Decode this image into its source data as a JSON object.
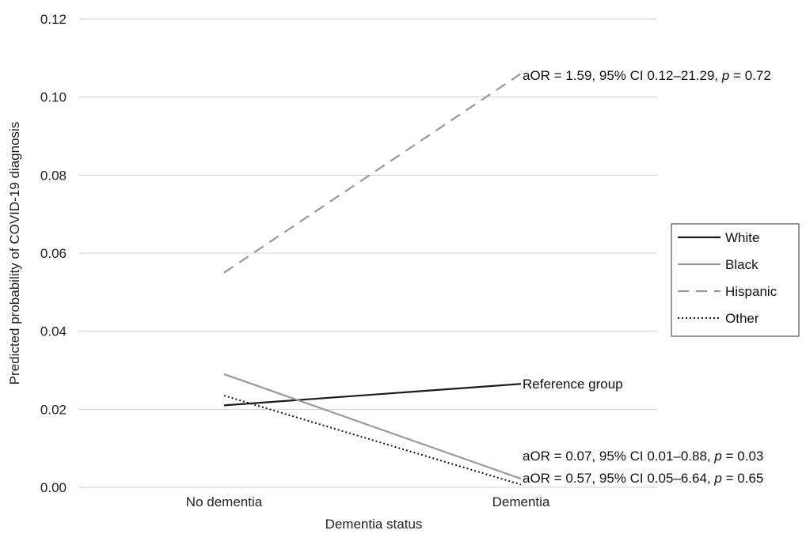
{
  "chart_data": {
    "type": "line",
    "title": "",
    "xlabel": "Dementia status",
    "ylabel": "Predicted probability of COVID-19 diagnosis",
    "categories": [
      "No dementia",
      "Dementia"
    ],
    "ylim": [
      0,
      0.12
    ],
    "yticks": [
      "0.00",
      "0.02",
      "0.04",
      "0.06",
      "0.08",
      "0.10",
      "0.12"
    ],
    "ytick_values": [
      0,
      0.02,
      0.04,
      0.06,
      0.08,
      0.1,
      0.12
    ],
    "grid": "horizontal",
    "legend_position": "right",
    "series": [
      {
        "name": "White",
        "values": [
          0.021,
          0.0265
        ],
        "color": "#1a1a1a",
        "dash": "solid"
      },
      {
        "name": "Black",
        "values": [
          0.029,
          0.0022
        ],
        "color": "#999999",
        "dash": "solid"
      },
      {
        "name": "Hispanic",
        "values": [
          0.055,
          0.106
        ],
        "color": "#999999",
        "dash": "dashed"
      },
      {
        "name": "Other",
        "values": [
          0.0235,
          0.0007
        ],
        "color": "#1a1a1a",
        "dash": "dotted"
      }
    ],
    "annotations": [
      {
        "series": "Hispanic",
        "text": "aOR = 1.59, 95% CI 0.12–21.29, p = 0.72"
      },
      {
        "series": "White",
        "text": "Reference group"
      },
      {
        "series": "Black",
        "text": "aOR = 0.07, 95% CI 0.01–0.88, p = 0.03"
      },
      {
        "series": "Other",
        "text": "aOR = 0.57, 95% CI 0.05–6.64, p = 0.65"
      }
    ]
  }
}
